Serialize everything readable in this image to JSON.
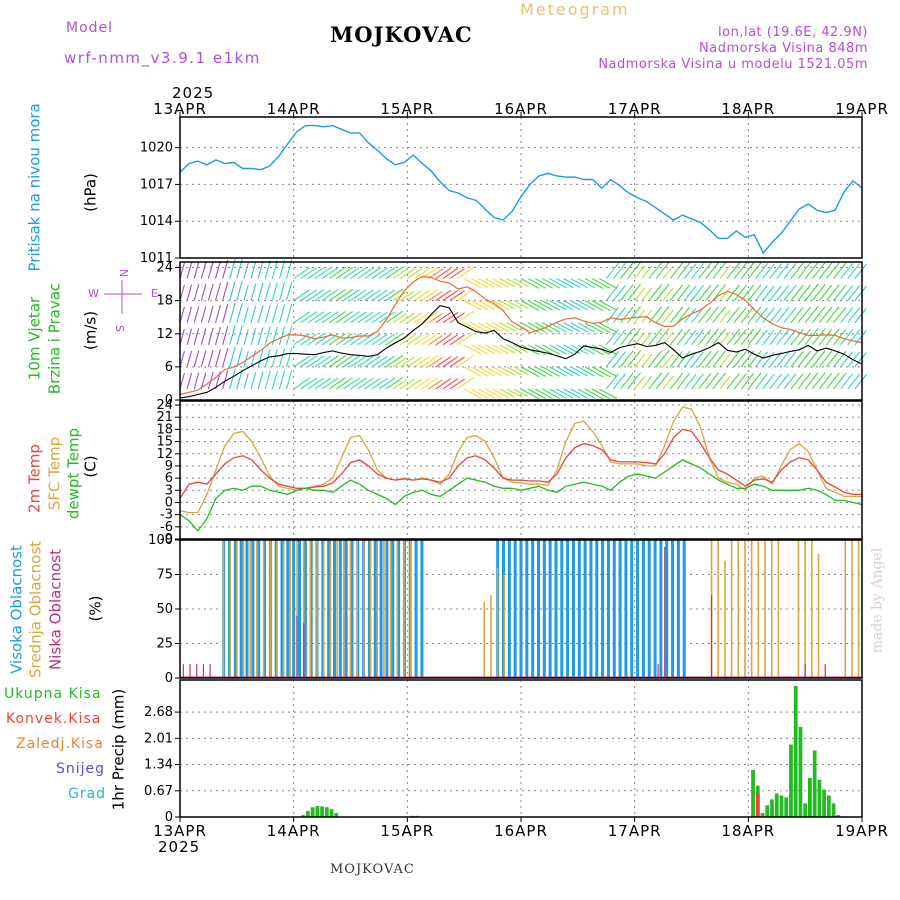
{
  "header": {
    "model_label": "Model",
    "model_name": "wrf-nmm_v3.9.1 e1km",
    "station_title": "MOJKOVAC",
    "meteogram_label": "Meteogram",
    "lonlat": "lon,lat (19.6E, 42.9N)",
    "altitude": "Nadmorska Visina 848m",
    "model_altitude": "Nadmorska Visina u modelu 1521.05m",
    "footer_station": "MOJKOVAC",
    "watermark": "made by Angel"
  },
  "colors": {
    "pressure": "#1e9be6",
    "wind_label": "#22bb22",
    "temp2m": "#e8453c",
    "sfc_temp": "#d9a640",
    "dewpt": "#22bb22",
    "high_cloud": "#1e9be6",
    "mid_cloud": "#d9a640",
    "low_cloud": "#c0307a",
    "total_precip": "#22bb22",
    "conv_precip": "#e8453c",
    "frozen": "#f07f2c",
    "snow": "#5050e0",
    "hail": "#22bbbb",
    "purple": "#b24fd6"
  },
  "chart_data": [
    {
      "type": "line",
      "title": "",
      "ylabel_1": "Pritisak na nivou mora",
      "ylabel_2": "(hPa)",
      "year_top": "2025",
      "x_ticks": [
        "13APR",
        "14APR",
        "15APR",
        "16APR",
        "17APR",
        "18APR",
        "19APR"
      ],
      "ylim": [
        1011,
        1022.5
      ],
      "y_ticks": [
        1011,
        1014,
        1017,
        1020
      ],
      "grid": true,
      "series": [
        {
          "values": [
            1018,
            1018.7,
            1018.9,
            1018.6,
            1019.0,
            1018.7,
            1018.8,
            1018.3,
            1018.3,
            1018.2,
            1018.5,
            1019.3,
            1020.3,
            1021.3,
            1021.8,
            1021.8,
            1021.7,
            1021.8,
            1021.5,
            1021.2,
            1021.2,
            1020.4,
            1019.8,
            1019.1,
            1018.6,
            1018.8,
            1019.4,
            1018.7,
            1018.1,
            1017.2,
            1016.5,
            1016.3,
            1015.9,
            1015.7,
            1015.0,
            1014.3,
            1014.1,
            1014.8,
            1016.0,
            1017.0,
            1017.7,
            1017.9,
            1017.7,
            1017.6,
            1017.6,
            1017.4,
            1017.4,
            1016.7,
            1017.4,
            1016.9,
            1016.3,
            1015.9,
            1015.6,
            1015.1,
            1014.6,
            1014.1,
            1014.5,
            1014.2,
            1013.9,
            1013.3,
            1012.6,
            1012.6,
            1013.2,
            1012.7,
            1012.9,
            1011.4,
            1012.3,
            1013.0,
            1014.0,
            1015.0,
            1015.4,
            1014.9,
            1014.7,
            1014.9,
            1016.4,
            1017.3,
            1016.7
          ]
        }
      ]
    },
    {
      "type": "line",
      "ylabel_1": "10m Vjetar",
      "ylabel_2": "Brzina i Pravac",
      "unit": "(m/s)",
      "compass": [
        "N",
        "E",
        "S",
        "W"
      ],
      "ylim": [
        0,
        25
      ],
      "y_ticks": [
        0,
        6,
        12,
        18,
        24
      ],
      "grid": true,
      "series": [
        {
          "name": "speed",
          "values": [
            0.4,
            0.6,
            1.0,
            1.4,
            2.3,
            3.4,
            4.3,
            5.3,
            6.2,
            7.1,
            7.8,
            8.0,
            8.4,
            8.4,
            8.3,
            8.2,
            8.6,
            8.9,
            8.5,
            8.2,
            8.1,
            7.9,
            8.2,
            9.4,
            10.4,
            11.2,
            12.6,
            13.8,
            15.5,
            17.1,
            16.7,
            14.0,
            13.2,
            12.4,
            12.1,
            12.6,
            11.1,
            10.4,
            9.6,
            9.1,
            8.8,
            8.5,
            8.0,
            7.5,
            8.3,
            9.8,
            9.5,
            9.2,
            8.6,
            9.5,
            9.9,
            10.2,
            9.7,
            9.9,
            10.4,
            9.1,
            7.6,
            8.3,
            8.8,
            9.5,
            10.4,
            9.0,
            8.7,
            9.2,
            8.3,
            7.6,
            8.1,
            8.4,
            8.8,
            9.1,
            9.9,
            8.9,
            9.4,
            8.9,
            8.3,
            7.3,
            6.5
          ]
        },
        {
          "name": "gust",
          "values": [
            1.0,
            1.4,
            1.8,
            2.9,
            4.1,
            5.5,
            6.0,
            6.8,
            7.9,
            9.0,
            10.3,
            11.1,
            11.8,
            11.8,
            11.6,
            11.1,
            11.4,
            11.8,
            11.2,
            11.3,
            11.6,
            11.6,
            12.4,
            14.6,
            17.3,
            19.8,
            21.4,
            22.4,
            22.2,
            21.5,
            21.2,
            20.1,
            20.5,
            19.6,
            18.3,
            17.5,
            16.2,
            14.2,
            13.2,
            12.2,
            12.7,
            13.3,
            14.1,
            14.7,
            14.9,
            14.3,
            13.9,
            14.1,
            14.9,
            14.6,
            14.8,
            15.0,
            15.1,
            14.0,
            13.3,
            13.4,
            14.7,
            15.6,
            16.3,
            17.5,
            18.9,
            19.7,
            19.1,
            18.1,
            16.3,
            14.9,
            13.8,
            13.1,
            12.8,
            12.2,
            11.7,
            11.7,
            11.8,
            11.7,
            11.1,
            10.7,
            10.4
          ]
        }
      ]
    },
    {
      "type": "line",
      "ylabel_1": "2m Temp",
      "ylabel_2": "SFC Temp",
      "ylabel_3": "dewpt Temp",
      "unit": "(C)",
      "ylim": [
        -9,
        25
      ],
      "y_ticks": [
        -9,
        -6,
        -3,
        0,
        3,
        6,
        9,
        12,
        15,
        18,
        21,
        24
      ],
      "grid": true,
      "series": [
        {
          "name": "2m Temp",
          "values": [
            1.0,
            4.5,
            5.0,
            4.5,
            7.0,
            9.5,
            11.0,
            11.5,
            10.5,
            8.0,
            6.0,
            4.5,
            4.0,
            3.5,
            3.5,
            3.8,
            4.0,
            4.8,
            7.0,
            9.8,
            10.5,
            9.0,
            7.0,
            6.0,
            5.5,
            5.8,
            5.5,
            5.8,
            5.5,
            5.0,
            6.0,
            9.0,
            11.0,
            11.5,
            10.5,
            8.5,
            6.0,
            5.5,
            5.5,
            5.3,
            5.3,
            5.0,
            7.0,
            11.0,
            13.5,
            14.5,
            14.0,
            13.0,
            10.5,
            10.0,
            10.0,
            10.0,
            9.8,
            9.5,
            12.0,
            16.0,
            18.0,
            17.5,
            14.5,
            11.0,
            8.0,
            7.0,
            5.5,
            4.0,
            5.5,
            5.8,
            5.0,
            8.0,
            10.0,
            11.0,
            10.5,
            8.0,
            5.0,
            3.8,
            2.5,
            2.0,
            2.0
          ]
        },
        {
          "name": "SFC Temp",
          "values": [
            -2.0,
            -2.5,
            -2.5,
            2.0,
            8.0,
            14.0,
            17.0,
            17.5,
            15.0,
            11.0,
            6.5,
            4.0,
            3.5,
            3.0,
            3.5,
            4.0,
            4.5,
            6.0,
            11.0,
            16.0,
            16.5,
            13.0,
            8.0,
            6.0,
            5.5,
            6.0,
            5.5,
            6.0,
            5.5,
            4.5,
            7.0,
            12.5,
            16.0,
            16.5,
            15.0,
            11.0,
            6.0,
            5.0,
            4.8,
            4.5,
            4.5,
            4.2,
            8.0,
            15.0,
            19.5,
            20.0,
            17.5,
            14.0,
            10.0,
            9.5,
            9.5,
            9.5,
            9.0,
            9.0,
            14.0,
            20.0,
            23.5,
            23.0,
            18.5,
            11.0,
            6.0,
            5.0,
            4.5,
            3.0,
            6.0,
            6.5,
            4.5,
            9.0,
            13.0,
            14.5,
            12.5,
            8.0,
            3.5,
            2.5,
            1.5,
            1.5,
            1.5
          ]
        },
        {
          "name": "dewpt Temp",
          "values": [
            -3.0,
            -4.5,
            -7.0,
            -4.0,
            1.0,
            3.0,
            3.5,
            3.0,
            4.0,
            4.0,
            3.0,
            2.5,
            2.0,
            3.0,
            3.5,
            3.0,
            3.0,
            2.5,
            4.0,
            5.5,
            4.5,
            3.0,
            2.0,
            1.0,
            -0.5,
            1.5,
            2.5,
            3.0,
            2.0,
            1.5,
            3.0,
            4.5,
            6.0,
            5.5,
            5.0,
            4.0,
            3.5,
            3.5,
            3.0,
            3.5,
            4.0,
            3.0,
            2.5,
            4.0,
            4.5,
            5.0,
            4.5,
            4.0,
            3.0,
            5.0,
            6.5,
            7.0,
            6.5,
            6.0,
            7.5,
            9.0,
            10.5,
            9.5,
            8.5,
            7.0,
            5.5,
            4.5,
            3.5,
            3.5,
            4.5,
            4.0,
            3.0,
            3.0,
            3.0,
            3.0,
            3.5,
            3.0,
            2.0,
            0.5,
            0.5,
            0.0,
            -0.5
          ]
        }
      ]
    },
    {
      "type": "bar",
      "ylabel_1": "Visoka Oblacnost",
      "ylabel_2": "Srednja Oblacnost",
      "ylabel_3": "Niska Oblacnost",
      "unit": "(%)",
      "ylim": [
        0,
        100
      ],
      "y_ticks": [
        0,
        25,
        50,
        75,
        100
      ],
      "grid": true,
      "series": [
        {
          "name": "Visoka",
          "values": [
            0,
            0,
            0,
            0,
            0,
            0,
            0,
            100,
            100,
            100,
            100,
            100,
            100,
            100,
            100,
            100,
            100,
            100,
            100,
            100,
            100,
            100,
            100,
            100,
            100,
            100,
            100,
            100,
            100,
            100,
            100,
            100,
            100,
            100,
            100,
            100,
            100,
            100,
            100,
            100,
            100,
            100,
            0,
            0,
            0,
            0,
            0,
            0,
            0,
            0,
            0,
            0,
            0,
            0,
            100,
            100,
            100,
            100,
            100,
            100,
            100,
            100,
            100,
            100,
            100,
            100,
            100,
            100,
            100,
            100,
            100,
            100,
            100,
            100,
            100,
            100,
            100,
            100,
            100,
            100,
            100,
            100,
            100,
            100,
            100,
            100,
            100,
            0,
            0,
            0,
            0,
            0,
            0,
            0,
            0,
            0,
            0,
            0,
            0,
            0,
            0,
            0,
            0,
            0,
            0,
            0,
            0,
            0,
            0,
            0,
            0,
            0,
            0,
            0,
            0,
            0,
            0
          ]
        },
        {
          "name": "Srednja",
          "values": [
            0,
            0,
            0,
            0,
            0,
            0,
            100,
            100,
            100,
            100,
            100,
            100,
            100,
            100,
            100,
            100,
            100,
            100,
            100,
            100,
            100,
            100,
            100,
            100,
            100,
            100,
            100,
            100,
            100,
            100,
            100,
            100,
            100,
            100,
            100,
            0,
            0,
            0,
            0,
            0,
            0,
            0,
            0,
            0,
            0,
            55,
            60,
            80,
            75,
            0,
            0,
            0,
            0,
            0,
            0,
            0,
            0,
            0,
            0,
            0,
            0,
            0,
            0,
            0,
            0,
            0,
            0,
            0,
            0,
            0,
            0,
            0,
            0,
            0,
            0,
            0,
            0,
            0,
            0,
            100,
            100,
            85,
            100,
            100,
            100,
            100,
            100,
            100,
            100,
            100,
            0,
            0,
            100,
            100,
            100,
            90,
            0,
            0,
            0,
            100,
            100,
            100
          ]
        },
        {
          "name": "Niska",
          "values": [
            10,
            10,
            10,
            10,
            10,
            0,
            0,
            0,
            0,
            0,
            0,
            0,
            0,
            0,
            0,
            0,
            0,
            45,
            40,
            0,
            0,
            0,
            0,
            0,
            0,
            0,
            0,
            0,
            0,
            0,
            0,
            0,
            0,
            0,
            0,
            0,
            0,
            0,
            0,
            0,
            0,
            0,
            0,
            0,
            0,
            0,
            0,
            0,
            0,
            0,
            0,
            0,
            0,
            0,
            0,
            0,
            0,
            0,
            0,
            0,
            0,
            0,
            0,
            0,
            0,
            0,
            0,
            0,
            0,
            0,
            0,
            10,
            95,
            0,
            0,
            0,
            0,
            0,
            0,
            60,
            0,
            0,
            0,
            0,
            0,
            0,
            0,
            0,
            0,
            0,
            0,
            0,
            0,
            10,
            0,
            0,
            10,
            0,
            0,
            0,
            0,
            0
          ]
        }
      ]
    },
    {
      "type": "bar",
      "ylabel_1": "1hr Precip (mm)",
      "legend": [
        "Ukupna Kisa",
        "Konvek.Kisa",
        "Zaledj.Kisa",
        "Snijeg",
        "Grad"
      ],
      "ylim": [
        0,
        3.5
      ],
      "y_ticks": [
        0,
        0.67,
        1.34,
        2.01,
        2.68
      ],
      "x_ticks": [
        "13APR",
        "14APR",
        "15APR",
        "16APR",
        "17APR",
        "18APR",
        "19APR"
      ],
      "year_bottom": "2025",
      "grid": true,
      "series": [
        {
          "name": "Ukupna Kisa",
          "x_hours": [
            26,
            27,
            28,
            29,
            30,
            31,
            32,
            33,
            49,
            50,
            121,
            122,
            123,
            124,
            125,
            126,
            127,
            128,
            129,
            130,
            131,
            132,
            133,
            134,
            135,
            136,
            137,
            138,
            139
          ],
          "values": [
            0.05,
            0.15,
            0.25,
            0.28,
            0.27,
            0.25,
            0.2,
            0.1,
            0.03,
            0.03,
            1.2,
            0.8,
            0.1,
            0.3,
            0.45,
            0.6,
            0.55,
            0.5,
            1.85,
            3.35,
            2.3,
            0.35,
            1.0,
            1.7,
            0.95,
            0.7,
            0.55,
            0.35,
            0.05
          ]
        },
        {
          "name": "Konvek.Kisa",
          "x_hours": [
            122
          ],
          "values": [
            0.6
          ]
        }
      ]
    }
  ]
}
